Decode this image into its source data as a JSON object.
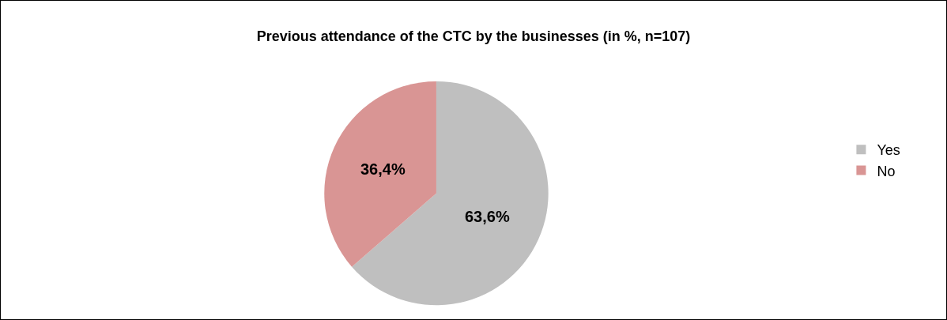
{
  "chart_data": {
    "type": "pie",
    "title": "Previous attendance of the CTC by the businesses (in %, n=107)",
    "categories": [
      "Yes",
      "No"
    ],
    "values": [
      63.6,
      36.4
    ],
    "colors": [
      "#bfbfbf",
      "#d99594"
    ],
    "value_labels": [
      "63,6%",
      "36,4%"
    ],
    "legend": "right"
  }
}
